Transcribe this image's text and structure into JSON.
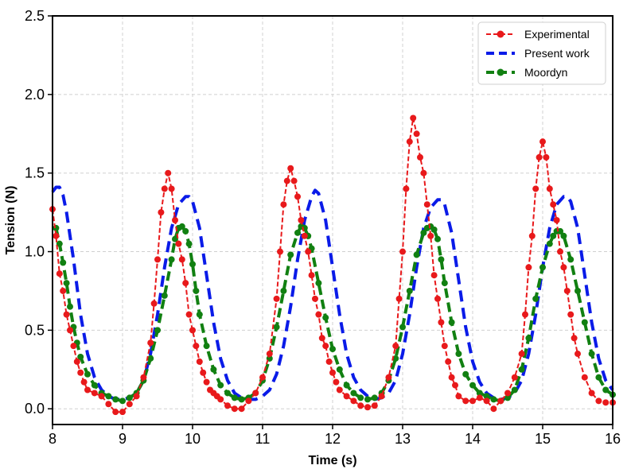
{
  "chart_data": {
    "type": "line",
    "title": "",
    "xlabel": "Time (s)",
    "ylabel": "Tension (N)",
    "xlim": [
      8,
      16
    ],
    "ylim": [
      -0.1,
      2.5
    ],
    "xticks": [
      8,
      9,
      10,
      11,
      12,
      13,
      14,
      15,
      16
    ],
    "yticks": [
      0.0,
      0.5,
      1.0,
      1.5,
      2.0,
      2.5
    ],
    "xtick_labels": [
      "8",
      "9",
      "10",
      "11",
      "12",
      "13",
      "14",
      "15",
      "16"
    ],
    "ytick_labels": [
      "0.0",
      "0.5",
      "1.0",
      "1.5",
      "2.0",
      "2.5"
    ],
    "grid": true,
    "legend_position": "top-right",
    "series": [
      {
        "name": "Experimental",
        "color": "#e8191b",
        "style": "dashed-markers",
        "x": [
          8.0,
          8.05,
          8.1,
          8.15,
          8.2,
          8.25,
          8.3,
          8.35,
          8.4,
          8.45,
          8.5,
          8.6,
          8.7,
          8.8,
          8.9,
          9.0,
          9.1,
          9.2,
          9.3,
          9.4,
          9.45,
          9.5,
          9.55,
          9.6,
          9.65,
          9.7,
          9.75,
          9.8,
          9.85,
          9.9,
          9.95,
          10.0,
          10.05,
          10.1,
          10.15,
          10.2,
          10.25,
          10.3,
          10.35,
          10.4,
          10.5,
          10.6,
          10.7,
          10.8,
          10.9,
          11.0,
          11.1,
          11.2,
          11.25,
          11.3,
          11.35,
          11.4,
          11.45,
          11.5,
          11.55,
          11.6,
          11.65,
          11.7,
          11.75,
          11.8,
          11.85,
          11.9,
          11.95,
          12.0,
          12.05,
          12.1,
          12.2,
          12.3,
          12.4,
          12.5,
          12.6,
          12.7,
          12.8,
          12.9,
          12.95,
          13.0,
          13.05,
          13.1,
          13.15,
          13.2,
          13.25,
          13.3,
          13.35,
          13.4,
          13.45,
          13.5,
          13.55,
          13.6,
          13.65,
          13.7,
          13.75,
          13.8,
          13.9,
          14.0,
          14.1,
          14.2,
          14.3,
          14.4,
          14.5,
          14.6,
          14.7,
          14.75,
          14.8,
          14.85,
          14.9,
          14.95,
          15.0,
          15.05,
          15.1,
          15.15,
          15.2,
          15.25,
          15.3,
          15.35,
          15.4,
          15.45,
          15.5,
          15.6,
          15.7,
          15.8,
          15.9,
          16.0
        ],
        "y": [
          1.27,
          1.1,
          0.86,
          0.75,
          0.6,
          0.5,
          0.4,
          0.3,
          0.23,
          0.17,
          0.12,
          0.1,
          0.08,
          0.03,
          -0.02,
          -0.02,
          0.03,
          0.08,
          0.2,
          0.42,
          0.67,
          0.95,
          1.25,
          1.4,
          1.5,
          1.4,
          1.2,
          1.05,
          0.95,
          0.8,
          0.6,
          0.5,
          0.4,
          0.3,
          0.23,
          0.17,
          0.12,
          0.1,
          0.08,
          0.06,
          0.02,
          0.0,
          0.0,
          0.05,
          0.1,
          0.2,
          0.35,
          0.7,
          1.0,
          1.3,
          1.45,
          1.53,
          1.45,
          1.35,
          1.2,
          1.1,
          1.0,
          0.85,
          0.7,
          0.6,
          0.45,
          0.4,
          0.3,
          0.23,
          0.17,
          0.12,
          0.08,
          0.05,
          0.02,
          0.01,
          0.02,
          0.08,
          0.2,
          0.4,
          0.7,
          1.0,
          1.4,
          1.7,
          1.85,
          1.75,
          1.6,
          1.5,
          1.3,
          1.1,
          0.85,
          0.7,
          0.55,
          0.4,
          0.3,
          0.2,
          0.15,
          0.08,
          0.05,
          0.05,
          0.07,
          0.05,
          0.0,
          0.05,
          0.1,
          0.2,
          0.35,
          0.6,
          0.9,
          1.1,
          1.4,
          1.6,
          1.7,
          1.6,
          1.4,
          1.3,
          1.2,
          1.0,
          0.9,
          0.75,
          0.6,
          0.45,
          0.35,
          0.2,
          0.1,
          0.05,
          0.04,
          0.04
        ]
      },
      {
        "name": "Present work",
        "color": "#0a1be8",
        "style": "dashed",
        "x": [
          8.0,
          8.05,
          8.1,
          8.15,
          8.2,
          8.3,
          8.4,
          8.5,
          8.6,
          8.7,
          8.8,
          8.9,
          9.0,
          9.1,
          9.2,
          9.3,
          9.4,
          9.5,
          9.6,
          9.7,
          9.8,
          9.9,
          9.95,
          10.0,
          10.1,
          10.2,
          10.3,
          10.4,
          10.5,
          10.6,
          10.7,
          10.8,
          10.9,
          11.0,
          11.1,
          11.2,
          11.3,
          11.4,
          11.5,
          11.6,
          11.7,
          11.75,
          11.8,
          11.9,
          12.0,
          12.1,
          12.2,
          12.3,
          12.4,
          12.5,
          12.6,
          12.7,
          12.8,
          12.9,
          13.0,
          13.1,
          13.2,
          13.3,
          13.4,
          13.5,
          13.55,
          13.6,
          13.7,
          13.8,
          13.9,
          14.0,
          14.1,
          14.2,
          14.3,
          14.4,
          14.5,
          14.6,
          14.7,
          14.8,
          14.9,
          15.0,
          15.1,
          15.2,
          15.3,
          15.35,
          15.4,
          15.5,
          15.6,
          15.7,
          15.8,
          15.9,
          16.0
        ],
        "y": [
          1.38,
          1.41,
          1.41,
          1.36,
          1.25,
          0.95,
          0.6,
          0.35,
          0.2,
          0.12,
          0.08,
          0.06,
          0.06,
          0.07,
          0.1,
          0.18,
          0.35,
          0.6,
          0.9,
          1.15,
          1.3,
          1.35,
          1.35,
          1.32,
          1.15,
          0.85,
          0.55,
          0.32,
          0.18,
          0.1,
          0.07,
          0.06,
          0.06,
          0.08,
          0.12,
          0.22,
          0.4,
          0.65,
          0.95,
          1.2,
          1.35,
          1.39,
          1.37,
          1.2,
          0.9,
          0.6,
          0.35,
          0.2,
          0.12,
          0.08,
          0.06,
          0.07,
          0.1,
          0.18,
          0.35,
          0.6,
          0.9,
          1.15,
          1.28,
          1.33,
          1.33,
          1.3,
          1.12,
          0.82,
          0.52,
          0.3,
          0.17,
          0.1,
          0.07,
          0.06,
          0.07,
          0.1,
          0.18,
          0.35,
          0.6,
          0.9,
          1.15,
          1.3,
          1.35,
          1.35,
          1.32,
          1.15,
          0.85,
          0.55,
          0.32,
          0.18,
          0.12
        ]
      },
      {
        "name": "Moordyn",
        "color": "#118011",
        "style": "dashed-markers",
        "x": [
          8.05,
          8.1,
          8.15,
          8.2,
          8.25,
          8.3,
          8.35,
          8.4,
          8.5,
          8.6,
          8.7,
          8.8,
          8.9,
          9.0,
          9.1,
          9.2,
          9.3,
          9.4,
          9.5,
          9.6,
          9.7,
          9.75,
          9.8,
          9.85,
          9.9,
          9.95,
          10.0,
          10.05,
          10.1,
          10.2,
          10.3,
          10.4,
          10.5,
          10.6,
          10.7,
          10.8,
          10.9,
          11.0,
          11.1,
          11.2,
          11.3,
          11.4,
          11.5,
          11.55,
          11.6,
          11.65,
          11.7,
          11.8,
          11.9,
          12.0,
          12.1,
          12.2,
          12.3,
          12.4,
          12.5,
          12.6,
          12.7,
          12.8,
          12.9,
          13.0,
          13.1,
          13.2,
          13.3,
          13.35,
          13.4,
          13.45,
          13.5,
          13.55,
          13.6,
          13.7,
          13.8,
          13.9,
          14.0,
          14.1,
          14.2,
          14.3,
          14.4,
          14.5,
          14.6,
          14.7,
          14.8,
          14.9,
          15.0,
          15.1,
          15.15,
          15.2,
          15.25,
          15.3,
          15.4,
          15.5,
          15.6,
          15.7,
          15.8,
          15.9,
          16.0
        ],
        "y": [
          1.15,
          1.05,
          0.93,
          0.8,
          0.65,
          0.52,
          0.42,
          0.33,
          0.22,
          0.15,
          0.1,
          0.08,
          0.06,
          0.05,
          0.07,
          0.1,
          0.18,
          0.32,
          0.5,
          0.72,
          0.95,
          1.08,
          1.15,
          1.16,
          1.13,
          1.05,
          0.92,
          0.75,
          0.6,
          0.4,
          0.25,
          0.15,
          0.1,
          0.07,
          0.06,
          0.07,
          0.1,
          0.18,
          0.32,
          0.52,
          0.75,
          0.98,
          1.12,
          1.16,
          1.15,
          1.1,
          1.02,
          0.8,
          0.58,
          0.38,
          0.25,
          0.15,
          0.1,
          0.07,
          0.06,
          0.07,
          0.1,
          0.18,
          0.32,
          0.52,
          0.75,
          0.98,
          1.12,
          1.15,
          1.16,
          1.14,
          1.08,
          0.95,
          0.8,
          0.55,
          0.35,
          0.22,
          0.15,
          0.1,
          0.08,
          0.06,
          0.05,
          0.07,
          0.12,
          0.25,
          0.45,
          0.7,
          0.9,
          1.05,
          1.1,
          1.13,
          1.13,
          1.1,
          0.95,
          0.75,
          0.55,
          0.35,
          0.2,
          0.12,
          0.09
        ]
      }
    ]
  }
}
